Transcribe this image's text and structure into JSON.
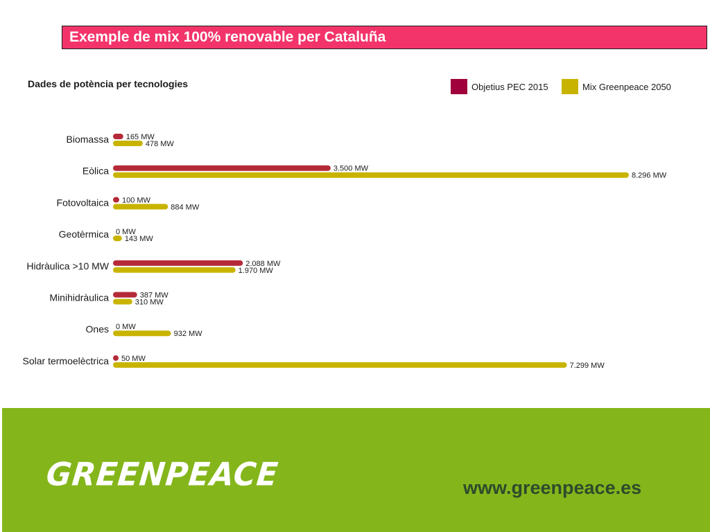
{
  "header": {
    "title": "Exemple de mix 100% renovable per Cataluña"
  },
  "chart_data": {
    "type": "bar",
    "orientation": "horizontal",
    "title": "Dades de potència per tecnologies",
    "categories": [
      "Biomassa",
      "Eòlica",
      "Fotovoltaica",
      "Geotèrmica",
      "Hidràulica >10 MW",
      "Minihidràulica",
      "Ones",
      "Solar termoelèctrica"
    ],
    "series": [
      {
        "name": "Objetius PEC 2015",
        "color": "#b52a38",
        "values": [
          165,
          3500,
          100,
          0,
          2088,
          387,
          0,
          50
        ],
        "labels": [
          "165 MW",
          "3.500 MW",
          "100 MW",
          "0 MW",
          "2.088 MW",
          "387 MW",
          "0 MW",
          "50 MW"
        ]
      },
      {
        "name": "Mix Greenpeace 2050",
        "color": "#c8b400",
        "values": [
          478,
          8296,
          884,
          143,
          1970,
          310,
          932,
          7299
        ],
        "labels": [
          "478 MW",
          "8.296 MW",
          "884 MW",
          "143 MW",
          "1.970 MW",
          "310 MW",
          "932 MW",
          "7.299 MW"
        ]
      }
    ],
    "legend_position": "top-right",
    "grid": false
  },
  "legend": {
    "pec_label": "Objetius PEC 2015",
    "pec_color": "#a0003c",
    "gp_label": "Mix Greenpeace 2050",
    "gp_color": "#c8b400"
  },
  "footer": {
    "logo_text": "GREENPEACE",
    "url": "www.greenpeace.es"
  }
}
